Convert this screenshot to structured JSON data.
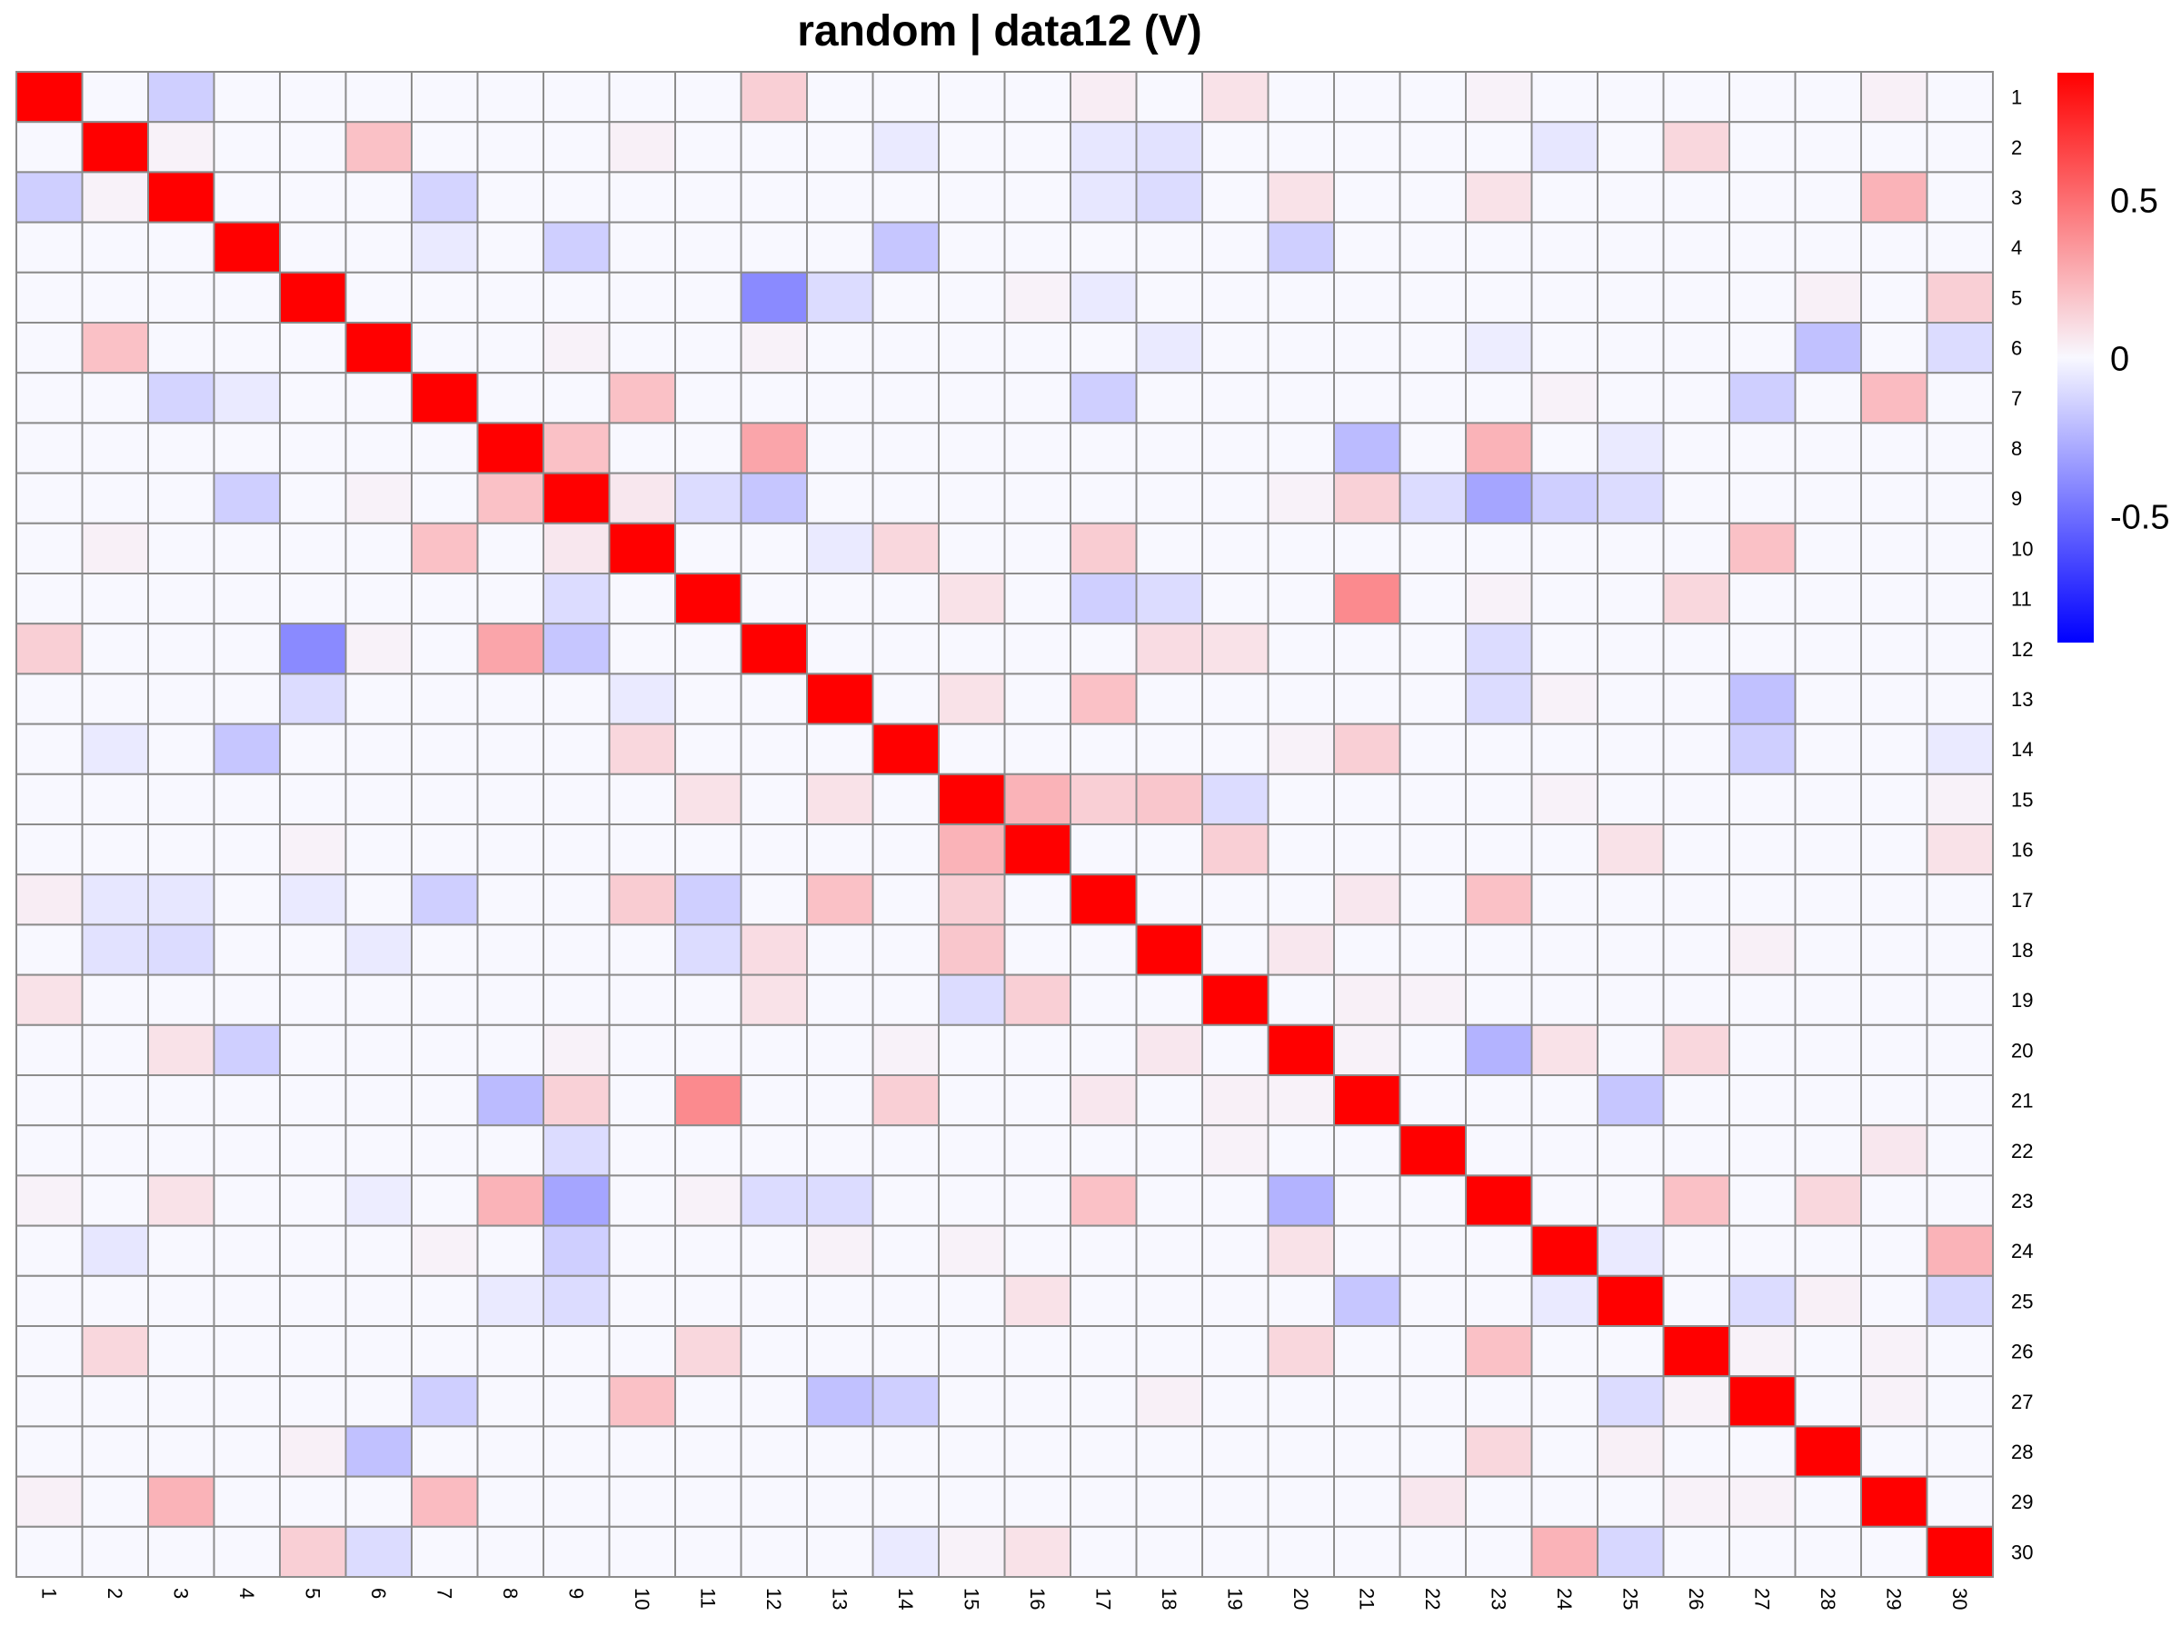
{
  "chart_data": {
    "type": "heatmap",
    "title": "random | data12 (V)",
    "xlabel": "",
    "ylabel": "",
    "x_labels": [
      "1",
      "2",
      "3",
      "4",
      "5",
      "6",
      "7",
      "8",
      "9",
      "10",
      "11",
      "12",
      "13",
      "14",
      "15",
      "16",
      "17",
      "18",
      "19",
      "20",
      "21",
      "22",
      "23",
      "24",
      "25",
      "26",
      "27",
      "28",
      "29",
      "30"
    ],
    "y_labels": [
      "1",
      "2",
      "3",
      "4",
      "5",
      "6",
      "7",
      "8",
      "9",
      "10",
      "11",
      "12",
      "13",
      "14",
      "15",
      "16",
      "17",
      "18",
      "19",
      "20",
      "21",
      "22",
      "23",
      "24",
      "25",
      "26",
      "27",
      "28",
      "29",
      "30"
    ],
    "x_label_rotation": 90,
    "grid": true,
    "colorscale": {
      "low": "#0000ff",
      "mid": "#f8f8ff",
      "high": "#ff0000",
      "min": -0.9,
      "max": 0.9
    },
    "colorbar": {
      "ticks": [
        0.5,
        0,
        -0.5
      ],
      "tick_labels": [
        "0.5",
        "0",
        "-0.5"
      ],
      "placement": "right"
    },
    "values": [
      [
        1,
        0,
        -0.15,
        0,
        0,
        0,
        0,
        0,
        0,
        0,
        0,
        0.15,
        0,
        0,
        0,
        0,
        0.04,
        0,
        0.08,
        0,
        0,
        0,
        0.02,
        0,
        0,
        0,
        0,
        0,
        0.03,
        0
      ],
      [
        0,
        1,
        0.02,
        0,
        0,
        0.2,
        0,
        0,
        0,
        0.03,
        0,
        0,
        0,
        -0.05,
        0,
        0,
        -0.06,
        -0.08,
        0,
        0,
        0,
        0,
        0,
        -0.06,
        0,
        0.12,
        0,
        0,
        0,
        0
      ],
      [
        -0.15,
        0.02,
        1,
        0,
        0,
        0,
        -0.13,
        0,
        0,
        0,
        0,
        0,
        0,
        0,
        0,
        0,
        -0.06,
        -0.1,
        0,
        0.08,
        0,
        0,
        0.08,
        0,
        0,
        0,
        0,
        0,
        0.25,
        0
      ],
      [
        0,
        0,
        0,
        1,
        0,
        0,
        -0.05,
        0,
        -0.15,
        0,
        0,
        0,
        0,
        -0.18,
        0,
        0,
        0,
        0,
        0,
        -0.15,
        0,
        0,
        0,
        0,
        0,
        0,
        0,
        0,
        0,
        0
      ],
      [
        0,
        0,
        0,
        0,
        1,
        0,
        0,
        0,
        0,
        0,
        0,
        -0.4,
        -0.1,
        0,
        0,
        0.02,
        -0.05,
        0,
        0,
        0,
        0,
        0,
        0,
        0,
        0,
        0,
        0,
        0.03,
        0,
        0.15
      ],
      [
        0,
        0.2,
        0,
        0,
        0,
        1,
        0,
        0,
        0.02,
        0,
        0,
        0.02,
        0,
        0,
        0,
        0,
        0,
        -0.05,
        0,
        0,
        0,
        0,
        -0.04,
        0,
        0,
        0,
        0,
        -0.2,
        0,
        -0.1
      ],
      [
        0,
        0,
        -0.13,
        -0.05,
        0,
        0,
        1,
        0,
        0,
        0.2,
        0,
        0,
        0,
        0,
        0,
        0,
        -0.15,
        0,
        0,
        0,
        0,
        0,
        0,
        0.02,
        0,
        0,
        -0.15,
        0,
        0.22,
        0
      ],
      [
        0,
        0,
        0,
        0,
        0,
        0,
        0,
        1,
        0.2,
        0,
        0,
        0.3,
        0,
        0,
        0,
        0,
        0,
        0,
        0,
        0,
        -0.22,
        0,
        0.25,
        0,
        -0.05,
        0,
        0,
        0,
        0,
        0
      ],
      [
        0,
        0,
        0,
        -0.15,
        0,
        0.02,
        0,
        0.2,
        1,
        0.06,
        -0.1,
        -0.18,
        0,
        0,
        0,
        0,
        0,
        0,
        0,
        0.02,
        0.14,
        -0.1,
        -0.3,
        -0.15,
        -0.1,
        0,
        0,
        0,
        0,
        0
      ],
      [
        0,
        0.03,
        0,
        0,
        0,
        0,
        0.2,
        0,
        0.06,
        1,
        0,
        0,
        -0.05,
        0.12,
        0,
        0,
        0.16,
        0,
        0,
        0,
        0,
        0,
        0,
        0,
        0,
        0,
        0.2,
        0,
        0,
        0
      ],
      [
        0,
        0,
        0,
        0,
        0,
        0,
        0,
        0,
        -0.1,
        0,
        1,
        0,
        0,
        0,
        0.08,
        0,
        -0.15,
        -0.1,
        0,
        0,
        0.4,
        0,
        0.02,
        0,
        0,
        0.12,
        0,
        0,
        0,
        0
      ],
      [
        0.15,
        0,
        0,
        0,
        -0.4,
        0.02,
        0,
        0.3,
        -0.18,
        0,
        0,
        1,
        0,
        0,
        0,
        0,
        0,
        0.1,
        0.08,
        0,
        0,
        0,
        -0.1,
        0,
        0,
        0,
        0,
        0,
        0,
        0
      ],
      [
        0,
        0,
        0,
        0,
        -0.1,
        0,
        0,
        0,
        0,
        -0.05,
        0,
        0,
        1,
        0,
        0.08,
        0,
        0.2,
        0,
        0,
        0,
        0,
        0,
        -0.1,
        0.02,
        0,
        0,
        -0.2,
        0,
        0,
        0
      ],
      [
        0,
        -0.05,
        0,
        -0.18,
        0,
        0,
        0,
        0,
        0,
        0.12,
        0,
        0,
        0,
        1,
        0,
        0,
        0,
        0,
        0,
        0.02,
        0.15,
        0,
        0,
        0,
        0,
        0,
        -0.15,
        0,
        0,
        -0.05
      ],
      [
        0,
        0,
        0,
        0,
        0,
        0,
        0,
        0,
        0,
        0,
        0.08,
        0,
        0.08,
        0,
        1,
        0.25,
        0.15,
        0.18,
        -0.1,
        0,
        0,
        0,
        0,
        0.02,
        0,
        0,
        0,
        0,
        0,
        0.02
      ],
      [
        0,
        0,
        0,
        0,
        0.02,
        0,
        0,
        0,
        0,
        0,
        0,
        0,
        0,
        0,
        0.25,
        1,
        0,
        0,
        0.15,
        0,
        0,
        0,
        0,
        0,
        0.08,
        0,
        0,
        0,
        0,
        0.08
      ],
      [
        0.04,
        -0.06,
        -0.06,
        0,
        -0.05,
        0,
        -0.15,
        0,
        0,
        0.16,
        -0.15,
        0,
        0.2,
        0,
        0.15,
        0,
        1,
        0,
        0,
        0,
        0.06,
        0,
        0.2,
        0,
        0,
        0,
        0,
        0,
        0,
        0
      ],
      [
        0,
        -0.08,
        -0.1,
        0,
        0,
        -0.05,
        0,
        0,
        0,
        0,
        -0.1,
        0.1,
        0,
        0,
        0.18,
        0,
        0,
        1,
        0,
        0.06,
        0,
        0,
        0,
        0,
        0,
        0,
        0.03,
        0,
        0,
        0
      ],
      [
        0.08,
        0,
        0,
        0,
        0,
        0,
        0,
        0,
        0,
        0,
        0,
        0.08,
        0,
        0,
        -0.1,
        0.15,
        0,
        0,
        1,
        0,
        0.03,
        0.02,
        0,
        0,
        0,
        0,
        0,
        0,
        0,
        0
      ],
      [
        0,
        0,
        0.08,
        -0.15,
        0,
        0,
        0,
        0,
        0.02,
        0,
        0,
        0,
        0,
        0.02,
        0,
        0,
        0,
        0.06,
        0,
        1,
        0.02,
        0,
        -0.25,
        0.08,
        0,
        0.12,
        0,
        0,
        0,
        0
      ],
      [
        0,
        0,
        0,
        0,
        0,
        0,
        0,
        -0.22,
        0.14,
        0,
        0.4,
        0,
        0,
        0.15,
        0,
        0,
        0.06,
        0,
        0.03,
        0.02,
        1,
        0,
        0,
        0,
        -0.18,
        0,
        0,
        0,
        0,
        0
      ],
      [
        0,
        0,
        0,
        0,
        0,
        0,
        0,
        0,
        -0.1,
        0,
        0,
        0,
        0,
        0,
        0,
        0,
        0,
        0,
        0.02,
        0,
        0,
        1,
        0,
        0,
        0,
        0,
        0,
        0,
        0.06,
        0
      ],
      [
        0.02,
        0,
        0.08,
        0,
        0,
        -0.04,
        0,
        0.25,
        -0.3,
        0,
        0.02,
        -0.1,
        -0.1,
        0,
        0,
        0,
        0.2,
        0,
        0,
        -0.25,
        0,
        0,
        1,
        0,
        0,
        0.2,
        0,
        0.12,
        0,
        0
      ],
      [
        0,
        -0.06,
        0,
        0,
        0,
        0,
        0.02,
        0,
        -0.15,
        0,
        0,
        0,
        0.02,
        0,
        0.02,
        0,
        0,
        0,
        0,
        0.08,
        0,
        0,
        0,
        1,
        -0.05,
        0,
        0,
        0,
        0,
        0.25
      ],
      [
        0,
        0,
        0,
        0,
        0,
        0,
        0,
        -0.05,
        -0.1,
        0,
        0,
        0,
        0,
        0,
        0,
        0.08,
        0,
        0,
        0,
        0,
        -0.18,
        0,
        0,
        -0.05,
        1,
        0,
        -0.1,
        0.03,
        0,
        -0.12
      ],
      [
        0,
        0.12,
        0,
        0,
        0,
        0,
        0,
        0,
        0,
        0,
        0.12,
        0,
        0,
        0,
        0,
        0,
        0,
        0,
        0,
        0.12,
        0,
        0,
        0.2,
        0,
        0,
        1,
        0.02,
        0,
        0.02,
        0
      ],
      [
        0,
        0,
        0,
        0,
        0,
        0,
        -0.15,
        0,
        0,
        0.2,
        0,
        0,
        -0.2,
        -0.15,
        0,
        0,
        0,
        0.03,
        0,
        0,
        0,
        0,
        0,
        0,
        -0.1,
        0.02,
        1,
        0,
        0.02,
        0
      ],
      [
        0,
        0,
        0,
        0,
        0.03,
        -0.2,
        0,
        0,
        0,
        0,
        0,
        0,
        0,
        0,
        0,
        0,
        0,
        0,
        0,
        0,
        0,
        0,
        0.12,
        0,
        0.03,
        0,
        0,
        1,
        0,
        0
      ],
      [
        0.03,
        0,
        0.25,
        0,
        0,
        0,
        0.22,
        0,
        0,
        0,
        0,
        0,
        0,
        0,
        0,
        0,
        0,
        0,
        0,
        0,
        0,
        0.06,
        0,
        0,
        0,
        0.02,
        0.02,
        0,
        1,
        0
      ],
      [
        0,
        0,
        0,
        0,
        0.15,
        -0.1,
        0,
        0,
        0,
        0,
        0,
        0,
        0,
        -0.05,
        0.02,
        0.08,
        0,
        0,
        0,
        0,
        0,
        0,
        0,
        0.25,
        -0.12,
        0,
        0,
        0,
        0,
        1
      ]
    ]
  }
}
